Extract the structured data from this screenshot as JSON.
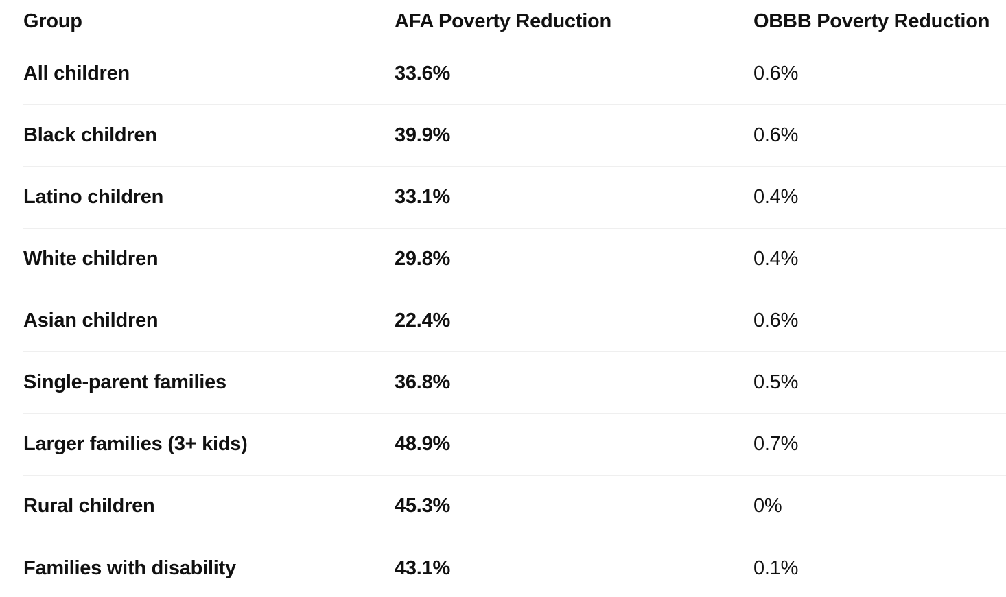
{
  "table": {
    "columns": [
      "Group",
      "AFA Poverty Reduction",
      "OBBB Poverty Reduction"
    ],
    "rows": [
      {
        "group": "All children",
        "afa": "33.6%",
        "obbb": "0.6%"
      },
      {
        "group": "Black children",
        "afa": "39.9%",
        "obbb": "0.6%"
      },
      {
        "group": "Latino children",
        "afa": "33.1%",
        "obbb": "0.4%"
      },
      {
        "group": "White children",
        "afa": "29.8%",
        "obbb": "0.4%"
      },
      {
        "group": "Asian children",
        "afa": "22.4%",
        "obbb": "0.6%"
      },
      {
        "group": "Single-parent families",
        "afa": "36.8%",
        "obbb": "0.5%"
      },
      {
        "group": "Larger families (3+ kids)",
        "afa": "48.9%",
        "obbb": "0.7%"
      },
      {
        "group": "Rural children",
        "afa": "45.3%",
        "obbb": "0%"
      },
      {
        "group": "Families with disability",
        "afa": "43.1%",
        "obbb": "0.1%"
      }
    ]
  },
  "colors": {
    "text": "#111111",
    "header_divider": "#e2e2e2",
    "row_divider": "#efefef",
    "background": "#ffffff"
  },
  "chart_data": {
    "type": "table",
    "title": "",
    "columns": [
      "Group",
      "AFA Poverty Reduction",
      "OBBB Poverty Reduction"
    ],
    "categories": [
      "All children",
      "Black children",
      "Latino children",
      "White children",
      "Asian children",
      "Single-parent families",
      "Larger families (3+ kids)",
      "Rural children",
      "Families with disability"
    ],
    "series": [
      {
        "name": "AFA Poverty Reduction",
        "unit": "%",
        "values": [
          33.6,
          39.9,
          33.1,
          29.8,
          22.4,
          36.8,
          48.9,
          45.3,
          43.1
        ]
      },
      {
        "name": "OBBB Poverty Reduction",
        "unit": "%",
        "values": [
          0.6,
          0.6,
          0.4,
          0.4,
          0.6,
          0.5,
          0.7,
          0,
          0.1
        ]
      }
    ],
    "layout": {
      "grid": "horizontal-hairlines",
      "header_bold": true,
      "value_columns_bold": [
        "AFA Poverty Reduction"
      ]
    }
  }
}
